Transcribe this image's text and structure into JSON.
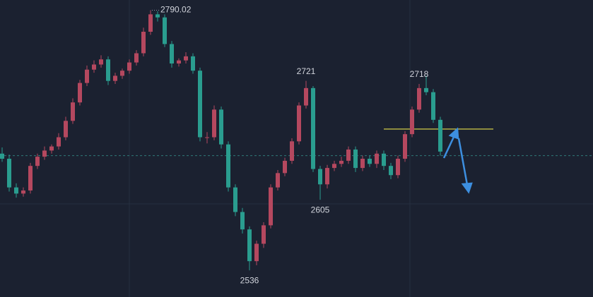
{
  "chart_data": {
    "type": "candlestick",
    "up_color": "#b5485f",
    "down_color": "#2a9d8f",
    "ylim": [
      2510,
      2800
    ],
    "open": [
      2650,
      2645,
      2617,
      2611,
      2614,
      2638,
      2647,
      2653,
      2657,
      2666,
      2682,
      2700,
      2719,
      2732,
      2737,
      2742,
      2721,
      2726,
      2731,
      2739,
      2748,
      2769,
      2786,
      2783,
      2757,
      2738,
      2741,
      2745,
      2731,
      2666,
      2666,
      2693,
      2659,
      2617,
      2593,
      2576,
      2545,
      2562,
      2580,
      2617,
      2631,
      2643,
      2662,
      2697,
      2714,
      2635,
      2620,
      2636,
      2640,
      2643,
      2654,
      2636,
      2645,
      2640,
      2650,
      2638,
      2629,
      2645,
      2669,
      2693,
      2714,
      2710,
      2683
    ],
    "high": [
      2656,
      2649,
      2621,
      2617,
      2641,
      2650,
      2657,
      2659,
      2670,
      2686,
      2704,
      2722,
      2736,
      2741,
      2746,
      2745,
      2729,
      2733,
      2742,
      2751,
      2773,
      2790.02,
      2789,
      2786,
      2760,
      2743,
      2749,
      2748,
      2734,
      2671,
      2697,
      2696,
      2662,
      2620,
      2597,
      2579,
      2565,
      2583,
      2620,
      2634,
      2646,
      2665,
      2700,
      2721,
      2716,
      2638,
      2639,
      2643,
      2647,
      2657,
      2657,
      2648,
      2648,
      2653,
      2653,
      2641,
      2648,
      2672,
      2696,
      2718,
      2726,
      2713,
      2686
    ],
    "low": [
      2642,
      2613,
      2607,
      2608,
      2611,
      2635,
      2644,
      2650,
      2654,
      2663,
      2679,
      2697,
      2716,
      2729,
      2734,
      2717,
      2718,
      2723,
      2728,
      2736,
      2745,
      2766,
      2779,
      2754,
      2734,
      2735,
      2738,
      2728,
      2662,
      2660,
      2663,
      2655,
      2613,
      2589,
      2572,
      2536,
      2541,
      2558,
      2577,
      2614,
      2628,
      2640,
      2659,
      2694,
      2632,
      2605,
      2616,
      2633,
      2637,
      2640,
      2632,
      2633,
      2637,
      2636,
      2634,
      2625,
      2626,
      2642,
      2666,
      2690,
      2707,
      2680,
      2648
    ],
    "close": [
      2645,
      2617,
      2611,
      2614,
      2638,
      2647,
      2653,
      2657,
      2666,
      2682,
      2700,
      2719,
      2732,
      2737,
      2742,
      2721,
      2726,
      2731,
      2739,
      2748,
      2769,
      2786,
      2783,
      2757,
      2738,
      2741,
      2745,
      2731,
      2666,
      2666,
      2693,
      2659,
      2617,
      2593,
      2576,
      2545,
      2562,
      2580,
      2617,
      2631,
      2643,
      2662,
      2697,
      2714,
      2635,
      2620,
      2636,
      2640,
      2643,
      2654,
      2636,
      2645,
      2640,
      2650,
      2638,
      2629,
      2645,
      2669,
      2693,
      2714,
      2710,
      2683,
      2652
    ],
    "hlines": [
      {
        "value": 2674,
        "color": "#e6e04a",
        "style": "solid"
      },
      {
        "value": 2648,
        "color": "#2f7a78",
        "style": "dashed"
      }
    ]
  }
}
